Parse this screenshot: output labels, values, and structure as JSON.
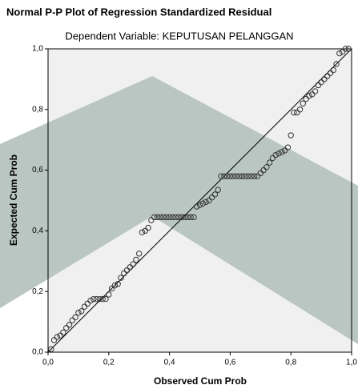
{
  "chart_data": {
    "type": "scatter",
    "title": "Normal P-P Plot of Regression Standardized Residual",
    "subtitle": "Dependent Variable: KEPUTUSAN PELANGGAN",
    "x_label": "Observed Cum Prob",
    "y_label": "Expected Cum Prob",
    "xlim": [
      0,
      1
    ],
    "ylim": [
      0,
      1
    ],
    "xticks": [
      {
        "value": 0,
        "label": "0,0"
      },
      {
        "value": 0.2,
        "label": "0,2"
      },
      {
        "value": 0.4,
        "label": "0,4"
      },
      {
        "value": 0.6,
        "label": "0,6"
      },
      {
        "value": 0.8,
        "label": "0,8"
      },
      {
        "value": 1,
        "label": "1,0"
      }
    ],
    "yticks": [
      {
        "value": 0,
        "label": "0,0"
      },
      {
        "value": 0.2,
        "label": "0,2"
      },
      {
        "value": 0.4,
        "label": "0,4"
      },
      {
        "value": 0.6,
        "label": "0,6"
      },
      {
        "value": 0.8,
        "label": "0,8"
      },
      {
        "value": 1,
        "label": "1,0"
      }
    ],
    "color": "#333333",
    "x": [
      0.01,
      0.02,
      0.03,
      0.04,
      0.05,
      0.06,
      0.07,
      0.08,
      0.09,
      0.1,
      0.11,
      0.12,
      0.13,
      0.14,
      0.15,
      0.16,
      0.17,
      0.18,
      0.19,
      0.2,
      0.21,
      0.22,
      0.23,
      0.24,
      0.25,
      0.26,
      0.27,
      0.28,
      0.29,
      0.3,
      0.31,
      0.32,
      0.33,
      0.34,
      0.35,
      0.36,
      0.37,
      0.38,
      0.39,
      0.4,
      0.41,
      0.42,
      0.43,
      0.44,
      0.45,
      0.46,
      0.47,
      0.48,
      0.49,
      0.5,
      0.51,
      0.52,
      0.53,
      0.54,
      0.55,
      0.56,
      0.57,
      0.58,
      0.59,
      0.6,
      0.61,
      0.62,
      0.63,
      0.64,
      0.65,
      0.66,
      0.67,
      0.68,
      0.69,
      0.7,
      0.71,
      0.72,
      0.73,
      0.74,
      0.75,
      0.76,
      0.77,
      0.78,
      0.79,
      0.8,
      0.81,
      0.82,
      0.83,
      0.84,
      0.85,
      0.86,
      0.87,
      0.88,
      0.89,
      0.9,
      0.91,
      0.92,
      0.93,
      0.94,
      0.95,
      0.96,
      0.97,
      0.98,
      0.99
    ],
    "values": [
      0.01,
      0.04,
      0.05,
      0.055,
      0.065,
      0.08,
      0.09,
      0.105,
      0.115,
      0.13,
      0.135,
      0.15,
      0.16,
      0.17,
      0.175,
      0.175,
      0.175,
      0.175,
      0.175,
      0.19,
      0.21,
      0.22,
      0.225,
      0.245,
      0.26,
      0.27,
      0.28,
      0.29,
      0.305,
      0.325,
      0.395,
      0.4,
      0.41,
      0.435,
      0.445,
      0.445,
      0.445,
      0.445,
      0.445,
      0.445,
      0.445,
      0.445,
      0.445,
      0.445,
      0.445,
      0.445,
      0.445,
      0.445,
      0.48,
      0.485,
      0.49,
      0.495,
      0.5,
      0.51,
      0.52,
      0.535,
      0.58,
      0.58,
      0.58,
      0.58,
      0.58,
      0.58,
      0.58,
      0.58,
      0.58,
      0.58,
      0.58,
      0.58,
      0.58,
      0.59,
      0.6,
      0.61,
      0.625,
      0.64,
      0.65,
      0.655,
      0.66,
      0.665,
      0.675,
      0.715,
      0.79,
      0.79,
      0.8,
      0.82,
      0.835,
      0.845,
      0.85,
      0.86,
      0.88,
      0.89,
      0.9,
      0.91,
      0.92,
      0.93,
      0.95,
      0.985,
      0.99,
      1.0,
      1.0
    ]
  }
}
